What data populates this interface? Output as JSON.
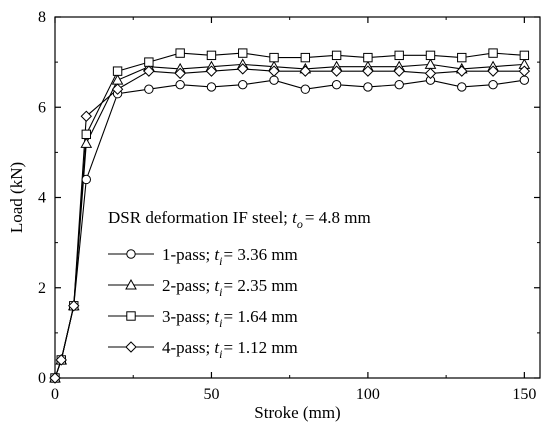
{
  "chart_data": {
    "type": "line",
    "title": "",
    "xlabel": "Stroke (mm)",
    "ylabel": "Load (kN)",
    "xlim": [
      0,
      155
    ],
    "ylim": [
      0,
      8
    ],
    "xticks": [
      0,
      50,
      100,
      150
    ],
    "yticks": [
      0,
      2,
      4,
      6,
      8
    ],
    "xtick_labels": [
      "0",
      "50",
      "100",
      "150"
    ],
    "ytick_labels": [
      "0",
      "2",
      "4",
      "6",
      "8"
    ],
    "grid": false,
    "legend_placement": "center-bottom",
    "legend_title": {
      "prefix": "DSR deformation IF steel; t",
      "subscript": "o",
      "suffix": "= 4.8 mm"
    },
    "series": [
      {
        "name": "1-pass; ti= 3.36 mm",
        "legend_prefix": "1-pass; t",
        "legend_subscript": "i",
        "legend_suffix": "= 3.36 mm",
        "marker": "circle",
        "points": [
          [
            0,
            0
          ],
          [
            2,
            0.4
          ],
          [
            6,
            1.6
          ],
          [
            10,
            4.4
          ],
          [
            20,
            6.3
          ],
          [
            30,
            6.4
          ],
          [
            40,
            6.5
          ],
          [
            50,
            6.45
          ],
          [
            60,
            6.5
          ],
          [
            70,
            6.6
          ],
          [
            80,
            6.4
          ],
          [
            90,
            6.5
          ],
          [
            100,
            6.45
          ],
          [
            110,
            6.5
          ],
          [
            120,
            6.6
          ],
          [
            130,
            6.45
          ],
          [
            140,
            6.5
          ],
          [
            150,
            6.6
          ]
        ]
      },
      {
        "name": "2-pass; ti= 2.35 mm",
        "legend_prefix": "2-pass; t",
        "legend_subscript": "i",
        "legend_suffix": "= 2.35 mm",
        "marker": "triangle",
        "points": [
          [
            0,
            0
          ],
          [
            2,
            0.4
          ],
          [
            6,
            1.6
          ],
          [
            10,
            5.2
          ],
          [
            20,
            6.6
          ],
          [
            30,
            6.9
          ],
          [
            40,
            6.85
          ],
          [
            50,
            6.9
          ],
          [
            60,
            6.95
          ],
          [
            70,
            6.9
          ],
          [
            80,
            6.85
          ],
          [
            90,
            6.9
          ],
          [
            100,
            6.9
          ],
          [
            110,
            6.9
          ],
          [
            120,
            6.95
          ],
          [
            130,
            6.85
          ],
          [
            140,
            6.9
          ],
          [
            150,
            6.95
          ]
        ]
      },
      {
        "name": "3-pass; ti= 1.64 mm",
        "legend_prefix": "3-pass; t",
        "legend_subscript": "i",
        "legend_suffix": "= 1.64 mm",
        "marker": "square",
        "points": [
          [
            0,
            0
          ],
          [
            2,
            0.4
          ],
          [
            6,
            1.6
          ],
          [
            10,
            5.4
          ],
          [
            20,
            6.8
          ],
          [
            30,
            7.0
          ],
          [
            40,
            7.2
          ],
          [
            50,
            7.15
          ],
          [
            60,
            7.2
          ],
          [
            70,
            7.1
          ],
          [
            80,
            7.1
          ],
          [
            90,
            7.15
          ],
          [
            100,
            7.1
          ],
          [
            110,
            7.15
          ],
          [
            120,
            7.15
          ],
          [
            130,
            7.1
          ],
          [
            140,
            7.2
          ],
          [
            150,
            7.15
          ]
        ]
      },
      {
        "name": "4-pass; ti= 1.12 mm",
        "legend_prefix": "4-pass; t",
        "legend_subscript": "i",
        "legend_suffix": "= 1.12 mm",
        "marker": "diamond",
        "points": [
          [
            0,
            0
          ],
          [
            2,
            0.4
          ],
          [
            6,
            1.6
          ],
          [
            10,
            5.8
          ],
          [
            20,
            6.4
          ],
          [
            30,
            6.8
          ],
          [
            40,
            6.75
          ],
          [
            50,
            6.8
          ],
          [
            60,
            6.85
          ],
          [
            70,
            6.8
          ],
          [
            80,
            6.8
          ],
          [
            90,
            6.8
          ],
          [
            100,
            6.8
          ],
          [
            110,
            6.8
          ],
          [
            120,
            6.75
          ],
          [
            130,
            6.8
          ],
          [
            140,
            6.8
          ],
          [
            150,
            6.8
          ]
        ]
      }
    ]
  }
}
